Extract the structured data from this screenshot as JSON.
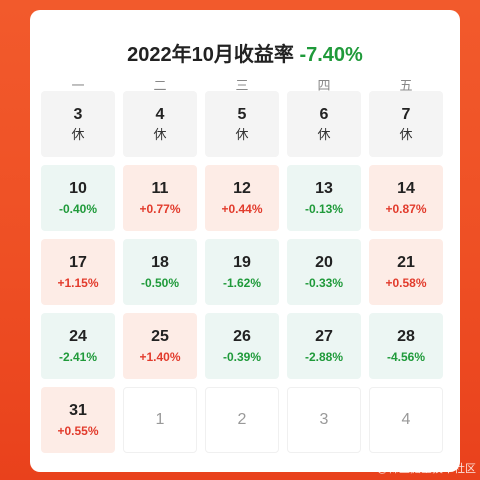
{
  "header": {
    "title": "2022年10月收益率",
    "rate": "-7.40%"
  },
  "weekdays": [
    "一",
    "二",
    "三",
    "四",
    "五"
  ],
  "days": [
    {
      "day": "3",
      "value": "休",
      "status": "rest"
    },
    {
      "day": "4",
      "value": "休",
      "status": "rest"
    },
    {
      "day": "5",
      "value": "休",
      "status": "rest"
    },
    {
      "day": "6",
      "value": "休",
      "status": "rest"
    },
    {
      "day": "7",
      "value": "休",
      "status": "rest"
    },
    {
      "day": "10",
      "value": "-0.40%",
      "status": "down"
    },
    {
      "day": "11",
      "value": "+0.77%",
      "status": "up"
    },
    {
      "day": "12",
      "value": "+0.44%",
      "status": "up"
    },
    {
      "day": "13",
      "value": "-0.13%",
      "status": "down"
    },
    {
      "day": "14",
      "value": "+0.87%",
      "status": "up"
    },
    {
      "day": "17",
      "value": "+1.15%",
      "status": "up"
    },
    {
      "day": "18",
      "value": "-0.50%",
      "status": "down"
    },
    {
      "day": "19",
      "value": "-1.62%",
      "status": "down"
    },
    {
      "day": "20",
      "value": "-0.33%",
      "status": "down"
    },
    {
      "day": "21",
      "value": "+0.58%",
      "status": "up"
    },
    {
      "day": "24",
      "value": "-2.41%",
      "status": "down"
    },
    {
      "day": "25",
      "value": "+1.40%",
      "status": "up"
    },
    {
      "day": "26",
      "value": "-0.39%",
      "status": "down"
    },
    {
      "day": "27",
      "value": "-2.88%",
      "status": "down"
    },
    {
      "day": "28",
      "value": "-4.56%",
      "status": "down"
    },
    {
      "day": "31",
      "value": "+0.55%",
      "status": "up"
    },
    {
      "day": "1",
      "value": "",
      "status": "future"
    },
    {
      "day": "2",
      "value": "",
      "status": "future"
    },
    {
      "day": "3",
      "value": "",
      "status": "future"
    },
    {
      "day": "4",
      "value": "",
      "status": "future"
    }
  ],
  "colors": {
    "up": "#e23b2c",
    "down": "#1f9a3a",
    "background": "#ee4f24"
  },
  "watermark": "@稀土掘金技术社区"
}
